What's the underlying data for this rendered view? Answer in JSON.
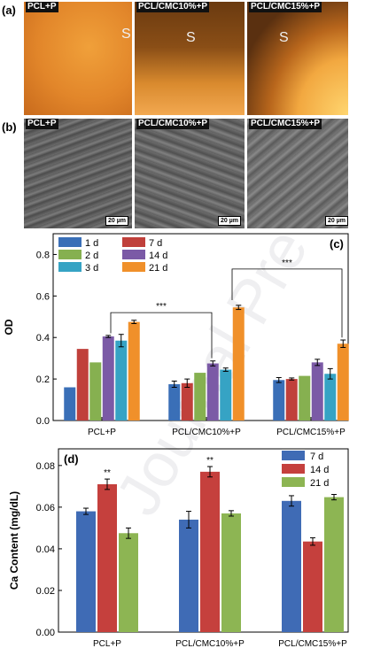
{
  "panel_a": {
    "letter": "(a)",
    "tiles": [
      {
        "label": "PCL+P",
        "s": "S"
      },
      {
        "label": "PCL/CMC10%+P",
        "s": "S"
      },
      {
        "label": "PCL/CMC15%+P",
        "s": "S"
      }
    ]
  },
  "panel_b": {
    "letter": "(b)",
    "tiles": [
      {
        "label": "PCL+P",
        "scale": "20 µm"
      },
      {
        "label": "PCL/CMC10%+P",
        "scale": "20 µm"
      },
      {
        "label": "PCL/CMC15%+P",
        "scale": "20 µm"
      }
    ]
  },
  "watermark": "Journal Pre",
  "chart_data": [
    {
      "type": "bar",
      "panel": "(c)",
      "ylabel": "OD",
      "ylim": [
        0.0,
        0.9
      ],
      "yticks": [
        "0.0",
        "0.2",
        "0.4",
        "0.6",
        "0.8"
      ],
      "categories": [
        "PCL+P",
        "PCL/CMC10%+P",
        "PCL/CMC15%+P"
      ],
      "series": [
        {
          "name": "1 d",
          "color": "#3a6fb7",
          "values": [
            0.16,
            0.175,
            0.195
          ],
          "err": [
            0.0,
            0.015,
            0.012
          ]
        },
        {
          "name": "7 d",
          "color": "#c0403b",
          "values": [
            0.345,
            0.18,
            0.2
          ],
          "err": [
            0.0,
            0.02,
            0.005
          ]
        },
        {
          "name": "2 d",
          "color": "#86b050",
          "values": [
            0.28,
            0.23,
            0.215
          ],
          "err": [
            0.0,
            0.0,
            0.0
          ]
        },
        {
          "name": "14 d",
          "color": "#7b5aa6",
          "values": [
            0.405,
            0.275,
            0.28
          ],
          "err": [
            0.005,
            0.012,
            0.015
          ]
        },
        {
          "name": "3 d",
          "color": "#36a3c4",
          "values": [
            0.385,
            0.245,
            0.225
          ],
          "err": [
            0.03,
            0.008,
            0.025
          ]
        },
        {
          "name": "21 d",
          "color": "#f0902a",
          "values": [
            0.475,
            0.545,
            0.37
          ],
          "err": [
            0.008,
            0.01,
            0.018
          ]
        }
      ],
      "legend": [
        "1 d",
        "7 d",
        "2 d",
        "14 d",
        "3 d",
        "21 d"
      ],
      "significance": [
        "***",
        "***"
      ]
    },
    {
      "type": "bar",
      "panel": "(d)",
      "ylabel": "Ca Content (mg/dL)",
      "ylim": [
        0.0,
        0.088
      ],
      "yticks": [
        "0.00",
        "0.02",
        "0.04",
        "0.06",
        "0.08"
      ],
      "categories": [
        "PCL+P",
        "PCL/CMC10%+P",
        "PCL/CMC15%+P"
      ],
      "series": [
        {
          "name": "7 d",
          "color": "#3f6bb5",
          "values": [
            0.058,
            0.054,
            0.063
          ],
          "err": [
            0.0015,
            0.004,
            0.0025
          ]
        },
        {
          "name": "14 d",
          "color": "#c5403d",
          "values": [
            0.071,
            0.077,
            0.0435
          ],
          "err": [
            0.0025,
            0.0025,
            0.0018
          ]
        },
        {
          "name": "21 d",
          "color": "#8db553",
          "values": [
            0.0475,
            0.057,
            0.0648
          ],
          "err": [
            0.0025,
            0.0013,
            0.0013
          ]
        }
      ],
      "significance": [
        "**",
        "**"
      ]
    }
  ]
}
